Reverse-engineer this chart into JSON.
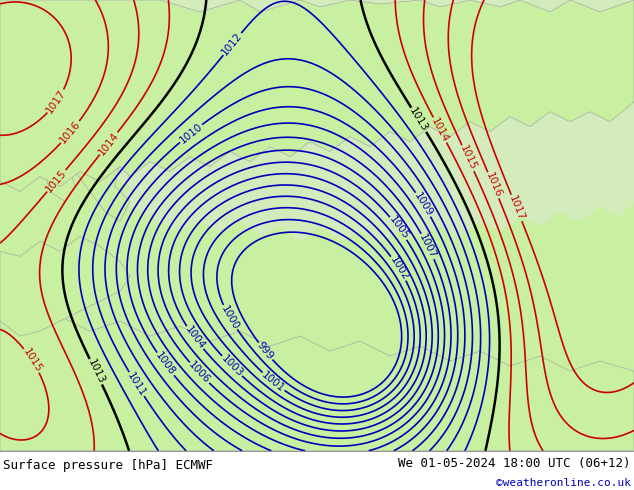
{
  "title_left": "Surface pressure [hPa] ECMWF",
  "title_right": "We 01-05-2024 18:00 UTC (06+12)",
  "credit": "©weatheronline.co.uk",
  "bg_map_color": "#c8f0a0",
  "ocean_color": "#e8e8e8",
  "text_color_blue": "#0000bb",
  "text_color_black": "#000000",
  "text_color_red": "#cc0000",
  "footer_bg": "#ffffff",
  "figsize": [
    6.34,
    4.9
  ],
  "dpi": 100,
  "blue_levels": [
    999,
    1000,
    1001,
    1002,
    1003,
    1004,
    1005,
    1006,
    1007,
    1008,
    1009,
    1010,
    1011,
    1012
  ],
  "black_levels": [
    1013
  ],
  "red_levels": [
    1014,
    1015,
    1016,
    1017
  ]
}
